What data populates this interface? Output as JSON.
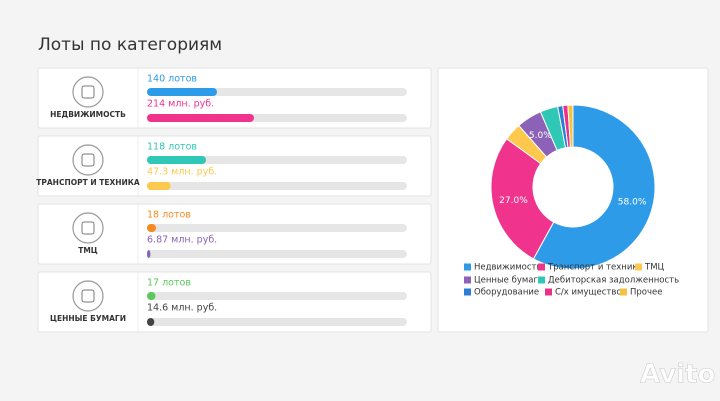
{
  "title": "Лоты по категориям",
  "rows": [
    {
      "name": "НЕДВИЖИМОСТЬ",
      "lots": 140,
      "lots_label": "140 лотов",
      "lots_color": "#2e9be8",
      "amount": 214,
      "amount_label": "214 млн. руб.",
      "amount_color": "#f0348e"
    },
    {
      "name": "ТРАНСПОРТ И ТЕХНИКА",
      "lots": 118,
      "lots_label": "118 лотов",
      "lots_color": "#2fc7b5",
      "amount": 47.3,
      "amount_label": "47.3 млн. руб.",
      "amount_color": "#fdc84b"
    },
    {
      "name": "ТМЦ",
      "lots": 18,
      "lots_label": "18 лотов",
      "lots_color": "#f58a1f",
      "amount": 6.87,
      "amount_label": "6.87 млн. руб.",
      "amount_color": "#8c62b8"
    },
    {
      "name": "ЦЕННЫЕ БУМАГИ",
      "lots": 17,
      "lots_label": "17 лотов",
      "lots_color": "#5cc85a",
      "amount": 14.6,
      "amount_label": "14.6 млн. руб.",
      "amount_color": "#444444"
    }
  ],
  "chart_data": {
    "type": "pie",
    "donut": true,
    "categories": [
      "Недвижимость",
      "Транспорт и техника",
      "ТМЦ",
      "Ценные бумаги",
      "Дебиторская задолженность",
      "Оборудование",
      "С/х имущество",
      "Прочее"
    ],
    "values": [
      58.0,
      27.0,
      3.5,
      5.0,
      3.5,
      1.0,
      1.0,
      1.0
    ],
    "value_labels": [
      "58.0%",
      "27.0%",
      null,
      "5.0%",
      null,
      null,
      null,
      null
    ],
    "colors": [
      "#2e9be8",
      "#f0348e",
      "#fdc84b",
      "#8c62b8",
      "#2fc7b5",
      "#2a7fd4",
      "#e9318a",
      "#f5c242"
    ]
  },
  "watermark": "Avito"
}
